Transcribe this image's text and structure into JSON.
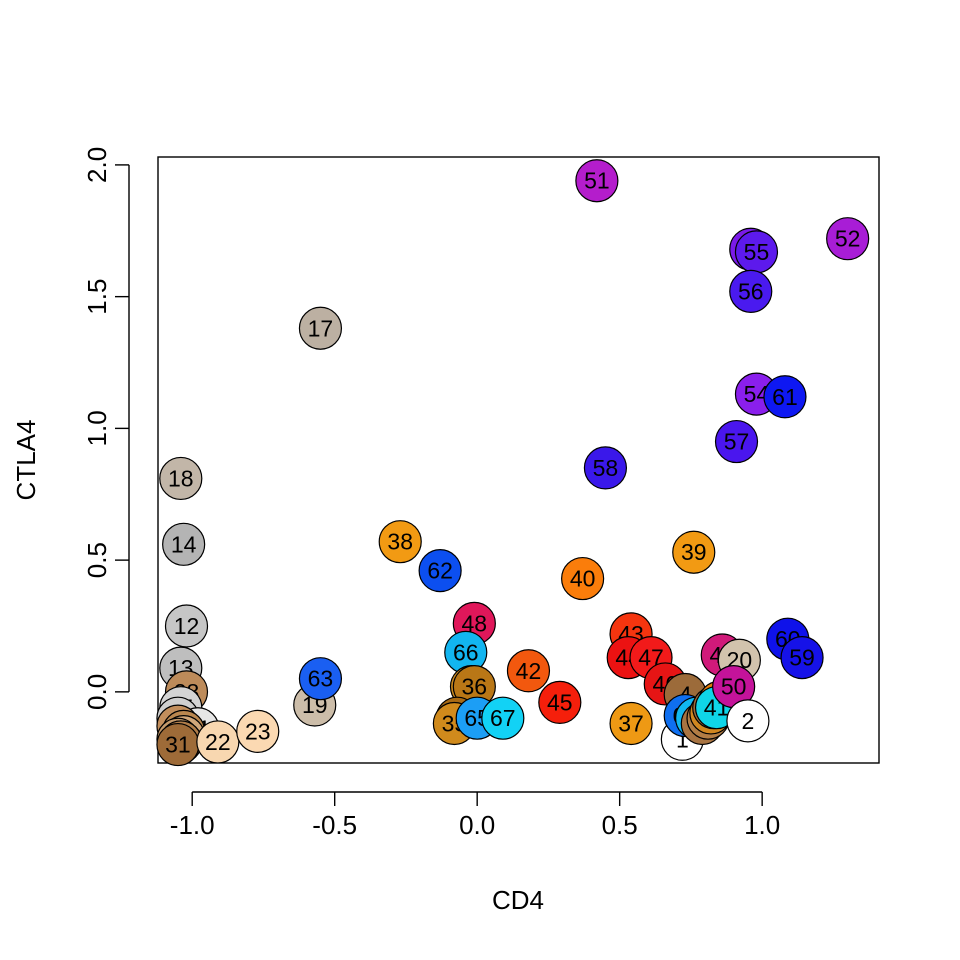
{
  "chart_data": {
    "type": "scatter",
    "title": "",
    "xlabel": "CD4",
    "ylabel": "CTLA4",
    "xlim": [
      -1.12,
      1.41
    ],
    "ylim": [
      -0.27,
      2.03
    ],
    "x_ticks": [
      -1.0,
      -0.5,
      0.0,
      0.5,
      1.0
    ],
    "x_tick_labels": [
      "-1.0",
      "-0.5",
      "0.0",
      "0.5",
      "1.0"
    ],
    "y_ticks": [
      0.0,
      0.5,
      1.0,
      1.5,
      2.0
    ],
    "y_tick_labels": [
      "0.0",
      "0.5",
      "1.0",
      "1.5",
      "2.0"
    ],
    "grid": false,
    "points": [
      {
        "label": "17",
        "x": -0.55,
        "y": 1.38,
        "color": "#bcb0a2"
      },
      {
        "label": "18",
        "x": -1.04,
        "y": 0.81,
        "color": "#c2b6a8"
      },
      {
        "label": "14",
        "x": -1.03,
        "y": 0.56,
        "color": "#b4b4b4"
      },
      {
        "label": "12",
        "x": -1.02,
        "y": 0.25,
        "color": "#c6c6c6"
      },
      {
        "label": "13",
        "x": -1.04,
        "y": 0.09,
        "color": "#bebebe"
      },
      {
        "label": "28",
        "x": -1.02,
        "y": 0.0,
        "color": "#bd8b5a"
      },
      {
        "label": "15",
        "x": -1.04,
        "y": -0.06,
        "color": "#d4d4d4"
      },
      {
        "label": "16",
        "x": -1.05,
        "y": -0.1,
        "color": "#cfcfcf"
      },
      {
        "label": "21",
        "x": -0.98,
        "y": -0.14,
        "color": "#e6e6e6"
      },
      {
        "label": "25",
        "x": -1.05,
        "y": -0.13,
        "color": "#c28e5c"
      },
      {
        "label": "26",
        "x": -1.03,
        "y": -0.15,
        "color": "#ba874f"
      },
      {
        "label": "24",
        "x": -1.03,
        "y": -0.17,
        "color": "#d1a77a"
      },
      {
        "label": "27",
        "x": -1.05,
        "y": -0.18,
        "color": "#c49a6c"
      },
      {
        "label": "29",
        "x": -1.04,
        "y": -0.19,
        "color": "#a5723f"
      },
      {
        "label": "30",
        "x": -1.04,
        "y": -0.19,
        "color": "#b17e4a"
      },
      {
        "label": "31",
        "x": -1.05,
        "y": -0.2,
        "color": "#9e6b38"
      },
      {
        "label": "22",
        "x": -0.91,
        "y": -0.19,
        "color": "#f8d7b0"
      },
      {
        "label": "23",
        "x": -0.77,
        "y": -0.15,
        "color": "#fbd9b2"
      },
      {
        "label": "19",
        "x": -0.57,
        "y": -0.05,
        "color": "#ccbda9"
      },
      {
        "label": "63",
        "x": -0.55,
        "y": 0.05,
        "color": "#1a5ff2"
      },
      {
        "label": "38",
        "x": -0.27,
        "y": 0.57,
        "color": "#f29a13"
      },
      {
        "label": "62",
        "x": -0.13,
        "y": 0.46,
        "color": "#0c4ff0"
      },
      {
        "label": "48",
        "x": -0.01,
        "y": 0.26,
        "color": "#e0175a"
      },
      {
        "label": "66",
        "x": -0.04,
        "y": 0.15,
        "color": "#12b5f0"
      },
      {
        "label": "34",
        "x": -0.02,
        "y": 0.02,
        "color": "#c8871e"
      },
      {
        "label": "36",
        "x": -0.01,
        "y": 0.02,
        "color": "#b97716"
      },
      {
        "label": "33",
        "x": -0.07,
        "y": -0.1,
        "color": "#a86a14"
      },
      {
        "label": "35",
        "x": -0.08,
        "y": -0.12,
        "color": "#d08a1c"
      },
      {
        "label": "65",
        "x": 0.0,
        "y": -0.1,
        "color": "#1c9ef5"
      },
      {
        "label": "67",
        "x": 0.09,
        "y": -0.1,
        "color": "#12d2f5"
      },
      {
        "label": "42",
        "x": 0.18,
        "y": 0.08,
        "color": "#f2580e"
      },
      {
        "label": "45",
        "x": 0.29,
        "y": -0.04,
        "color": "#f51f0b"
      },
      {
        "label": "40",
        "x": 0.37,
        "y": 0.43,
        "color": "#fa7d0b"
      },
      {
        "label": "51",
        "x": 0.42,
        "y": 1.94,
        "color": "#b41dcc"
      },
      {
        "label": "58",
        "x": 0.45,
        "y": 0.85,
        "color": "#3a18ea"
      },
      {
        "label": "37",
        "x": 0.54,
        "y": -0.12,
        "color": "#ee9914"
      },
      {
        "label": "43",
        "x": 0.54,
        "y": 0.22,
        "color": "#f5350f"
      },
      {
        "label": "44",
        "x": 0.53,
        "y": 0.13,
        "color": "#ec1212"
      },
      {
        "label": "47",
        "x": 0.61,
        "y": 0.13,
        "color": "#f21a1a"
      },
      {
        "label": "46",
        "x": 0.66,
        "y": 0.03,
        "color": "#e61515"
      },
      {
        "label": "1",
        "x": 0.72,
        "y": -0.18,
        "color": "#ffffff"
      },
      {
        "label": "4",
        "x": 0.73,
        "y": -0.01,
        "color": "#9c6b3a"
      },
      {
        "label": "64",
        "x": 0.73,
        "y": -0.09,
        "color": "#0f6ff0"
      },
      {
        "label": "68",
        "x": 0.77,
        "y": -0.1,
        "color": "#11b7f0"
      },
      {
        "label": "3",
        "x": 0.79,
        "y": -0.12,
        "color": "#a87442"
      },
      {
        "label": "9",
        "x": 0.81,
        "y": -0.1,
        "color": "#b27d45"
      },
      {
        "label": "11",
        "x": 0.82,
        "y": -0.08,
        "color": "#d08620"
      },
      {
        "label": "5",
        "x": 0.83,
        "y": -0.06,
        "color": "#9a6a3a"
      },
      {
        "label": "7",
        "x": 0.85,
        "y": -0.04,
        "color": "#e57c0c"
      },
      {
        "label": "41",
        "x": 0.84,
        "y": -0.06,
        "color": "#0fd5e8"
      },
      {
        "label": "39",
        "x": 0.76,
        "y": 0.53,
        "color": "#f29a13"
      },
      {
        "label": "49",
        "x": 0.86,
        "y": 0.14,
        "color": "#d01a7a"
      },
      {
        "label": "20",
        "x": 0.92,
        "y": 0.12,
        "color": "#d2c3ad"
      },
      {
        "label": "50",
        "x": 0.9,
        "y": 0.02,
        "color": "#c4139a"
      },
      {
        "label": "2",
        "x": 0.95,
        "y": -0.11,
        "color": "#ffffff"
      },
      {
        "label": "53",
        "x": 0.96,
        "y": 1.68,
        "color": "#7a1ae8"
      },
      {
        "label": "55",
        "x": 0.98,
        "y": 1.67,
        "color": "#5d1aec"
      },
      {
        "label": "52",
        "x": 1.3,
        "y": 1.72,
        "color": "#a81dd6"
      },
      {
        "label": "56",
        "x": 0.96,
        "y": 1.52,
        "color": "#4a1aef"
      },
      {
        "label": "54",
        "x": 0.98,
        "y": 1.13,
        "color": "#8a1fec"
      },
      {
        "label": "61",
        "x": 1.08,
        "y": 1.12,
        "color": "#0e18f2"
      },
      {
        "label": "57",
        "x": 0.91,
        "y": 0.95,
        "color": "#4a16ee"
      },
      {
        "label": "60",
        "x": 1.09,
        "y": 0.2,
        "color": "#0f12ea"
      },
      {
        "label": "59",
        "x": 1.14,
        "y": 0.13,
        "color": "#1612e8"
      }
    ]
  }
}
